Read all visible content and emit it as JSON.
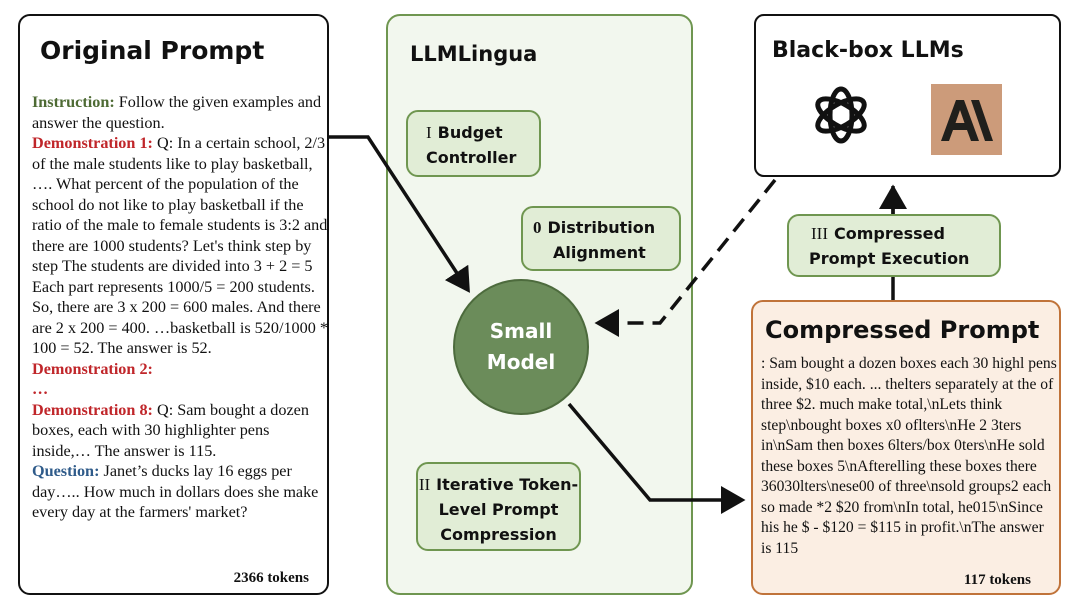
{
  "original_prompt": {
    "title": "Original Prompt",
    "instruction_label": "Instruction:",
    "instruction_text": " Follow the given examples and answer the question.",
    "demo1_label": "Demonstration 1:",
    "demo1_text": " Q: In a certain school, 2/3 of the male students like to play basketball, …. What percent of the population of the school do not like to play basketball if the ratio of the male to female students is 3:2 and there are 1000 students? Let's think step by step The students are divided into 3 + 2 = 5 Each part represents 1000/5 = 200 students. So, there are 3 x 200 = 600 males. And there are 2 x 200 = 400. …basketball is 520/1000 * 100 = 52. The answer is 52.",
    "demo2_label": "Demonstration 2:",
    "ellipsis": "…",
    "demo8_label": "Demonstration 8:",
    "demo8_text": " Q: Sam bought a dozen boxes, each with 30 highlighter pens inside,… The answer is 115.",
    "question_label": "Question:",
    "question_text": " Janet’s ducks lay 16 eggs per day….. How much in dollars does she make every day at the farmers' market?",
    "tokens": "2366 tokens"
  },
  "llmlingua": {
    "title": "LLMLingua",
    "budget": {
      "num": "I",
      "label": "Budget Controller"
    },
    "distribution": {
      "num": "0",
      "label1": "Distribution",
      "label2": "Alignment"
    },
    "small_model": {
      "line1": "Small",
      "line2": "Model"
    },
    "iterative": {
      "num": "II",
      "label1": "Iterative Token-",
      "label2": "Level Prompt",
      "label3": "Compression"
    }
  },
  "blackbox": {
    "title": "Black-box LLMs",
    "logos": [
      "openai-logo",
      "anthropic-logo"
    ],
    "anthropic_color": "#cc9b7a"
  },
  "execution": {
    "num": "III",
    "label1": "Compressed",
    "label2": "Prompt Execution"
  },
  "compressed_prompt": {
    "title": "Compressed Prompt",
    "text": ": Sam bought a dozen boxes each 30 highl pens inside, $10 each. ... thelters separately at the of three $2. much make total,\\nLets think step\\nbought boxes x0 oflters\\nHe 2 3ters in\\nSam then boxes 6lters/box 0ters\\nHe sold these boxes 5\\nAfterelling these boxes there 36030lters\\nese00 of three\\nsold groups2 each so made *2 $20 from\\nIn total, he015\\nSince his he $ - $120 = $115 in profit.\\nThe answer is 115",
    "tokens": "117 tokens"
  },
  "colors": {
    "green_border": "#6f9650",
    "green_fill": "#e1edd6",
    "panel_fill": "#f2f7ee",
    "model_fill": "#6b8c5a",
    "orange_border": "#c0733a",
    "compressed_fill": "#fbeee3",
    "instruction": "#4e6b34",
    "demonstration": "#c0262a",
    "question": "#2f5b8a"
  }
}
